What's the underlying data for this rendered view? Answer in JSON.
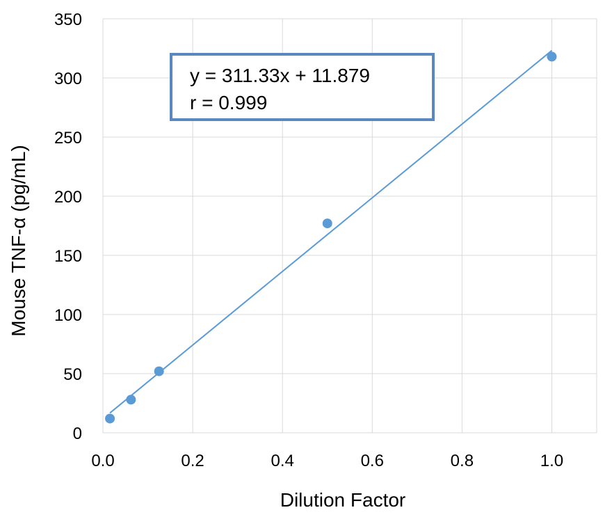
{
  "chart_data": {
    "type": "scatter",
    "title": "",
    "xlabel": "Dilution Factor",
    "ylabel": "Mouse TNF-α (pg/mL)",
    "xlim": [
      0.0,
      1.1
    ],
    "ylim": [
      0,
      350
    ],
    "x_ticks": [
      0.0,
      0.2,
      0.4,
      0.6,
      0.8,
      1.0
    ],
    "x_tick_labels": [
      "0.0",
      "0.2",
      "0.4",
      "0.6",
      "0.8",
      "1.0"
    ],
    "y_ticks": [
      0,
      50,
      100,
      150,
      200,
      250,
      300,
      350
    ],
    "y_tick_labels": [
      "0",
      "50",
      "100",
      "150",
      "200",
      "250",
      "300",
      "350"
    ],
    "grid": true,
    "series": [
      {
        "points": [
          {
            "x": 0.0156,
            "y": 12
          },
          {
            "x": 0.0625,
            "y": 28
          },
          {
            "x": 0.125,
            "y": 52
          },
          {
            "x": 0.5,
            "y": 177
          },
          {
            "x": 1.0,
            "y": 318
          }
        ],
        "color": "#5b9bd5"
      }
    ],
    "trendline": {
      "slope": 311.33,
      "intercept": 11.879,
      "x_range": [
        0.0156,
        1.0
      ],
      "color": "#5b9bd5"
    },
    "annotation": {
      "lines": [
        "y = 311.33x + 11.879",
        "r = 0.999"
      ],
      "border_color": "#5b87c0"
    }
  }
}
